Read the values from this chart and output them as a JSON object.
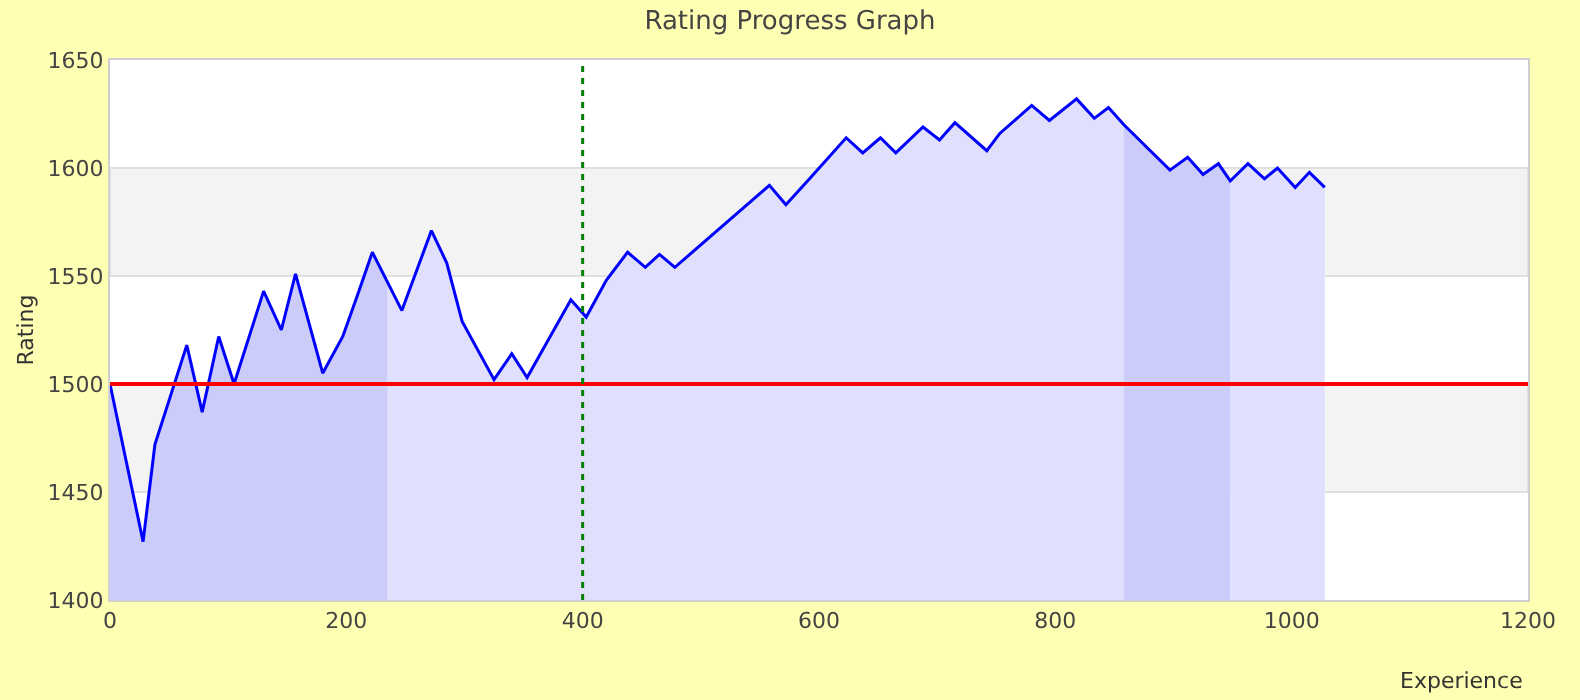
{
  "chart_data": {
    "type": "area",
    "title": "Rating Progress Graph",
    "xlabel": "Experience",
    "ylabel": "Rating",
    "x": [
      0,
      28,
      38,
      65,
      78,
      92,
      105,
      130,
      145,
      157,
      180,
      197,
      210,
      222,
      247,
      272,
      285,
      298,
      325,
      340,
      353,
      390,
      403,
      420,
      438,
      453,
      465,
      478,
      558,
      572,
      592,
      623,
      637,
      652,
      665,
      688,
      702,
      715,
      742,
      753,
      780,
      795,
      818,
      833,
      845,
      858,
      897,
      912,
      925,
      938,
      948,
      963,
      977,
      988,
      1003,
      1015,
      1028
    ],
    "series": [
      {
        "color": "#ccccfa",
        "x": [
          0,
          28,
          38,
          65,
          78,
          92,
          105,
          130,
          145,
          157,
          180,
          197,
          210,
          222,
          235
        ],
        "values": [
          1500,
          1427,
          1472,
          1518,
          1487,
          1522,
          1500,
          1543,
          1525,
          1551,
          1505,
          1522,
          1542,
          1561,
          1547
        ]
      },
      {
        "color": "#e0e0fd",
        "x": [
          235,
          247,
          272,
          285,
          298,
          325,
          340,
          353,
          390,
          403,
          420,
          438,
          453,
          465,
          478,
          558,
          572,
          592,
          623,
          637,
          652,
          665,
          688,
          702,
          715,
          742,
          753,
          780,
          795,
          818,
          833,
          845,
          858
        ],
        "values": [
          1547,
          1534,
          1571,
          1556,
          1529,
          1502,
          1514,
          1503,
          1539,
          1531,
          1548,
          1561,
          1554,
          1560,
          1554,
          1592,
          1583,
          1595,
          1614,
          1607,
          1614,
          1607,
          1619,
          1613,
          1621,
          1608,
          1616,
          1629,
          1622,
          1632,
          1623,
          1628,
          1620
        ]
      },
      {
        "color": "#ccccfa",
        "x": [
          858,
          897,
          912,
          925,
          938,
          948
        ],
        "values": [
          1620,
          1599,
          1605,
          1597,
          1602,
          1594
        ]
      },
      {
        "color": "#e0e0fd",
        "x": [
          948,
          963,
          977,
          988,
          1003,
          1015,
          1028
        ],
        "values": [
          1594,
          1602,
          1595,
          1600,
          1591,
          1598,
          1591
        ]
      },
      {
        "type": "line",
        "color": "#0000ff",
        "values": [
          1500,
          1427,
          1472,
          1518,
          1487,
          1522,
          1500,
          1543,
          1525,
          1551,
          1505,
          1522,
          1542,
          1561,
          1534,
          1571,
          1556,
          1529,
          1502,
          1514,
          1503,
          1539,
          1531,
          1548,
          1561,
          1554,
          1560,
          1554,
          1592,
          1583,
          1595,
          1614,
          1607,
          1614,
          1607,
          1619,
          1613,
          1621,
          1608,
          1616,
          1629,
          1622,
          1632,
          1623,
          1628,
          1620,
          1599,
          1605,
          1597,
          1602,
          1594,
          1602,
          1595,
          1600,
          1591,
          1598,
          1591
        ]
      }
    ],
    "xlim": [
      0,
      1200
    ],
    "xticks": [
      0,
      200,
      400,
      600,
      800,
      1000,
      1200
    ],
    "ylim": [
      1400,
      1650
    ],
    "yticks": [
      1400,
      1450,
      1500,
      1550,
      1600,
      1650
    ],
    "grid": false,
    "ref_lines": [
      {
        "axis": "y",
        "value": 1500,
        "color": "#ff0000",
        "line_style": "solid"
      },
      {
        "axis": "x",
        "value": 400,
        "color": "#008000",
        "line_style": "dotted"
      }
    ],
    "bands": [
      {
        "axis": "y",
        "from": 1450,
        "to": 1500,
        "color": "#f3f3f3"
      },
      {
        "axis": "y",
        "from": 1550,
        "to": 1600,
        "color": "#f3f3f3"
      }
    ]
  }
}
